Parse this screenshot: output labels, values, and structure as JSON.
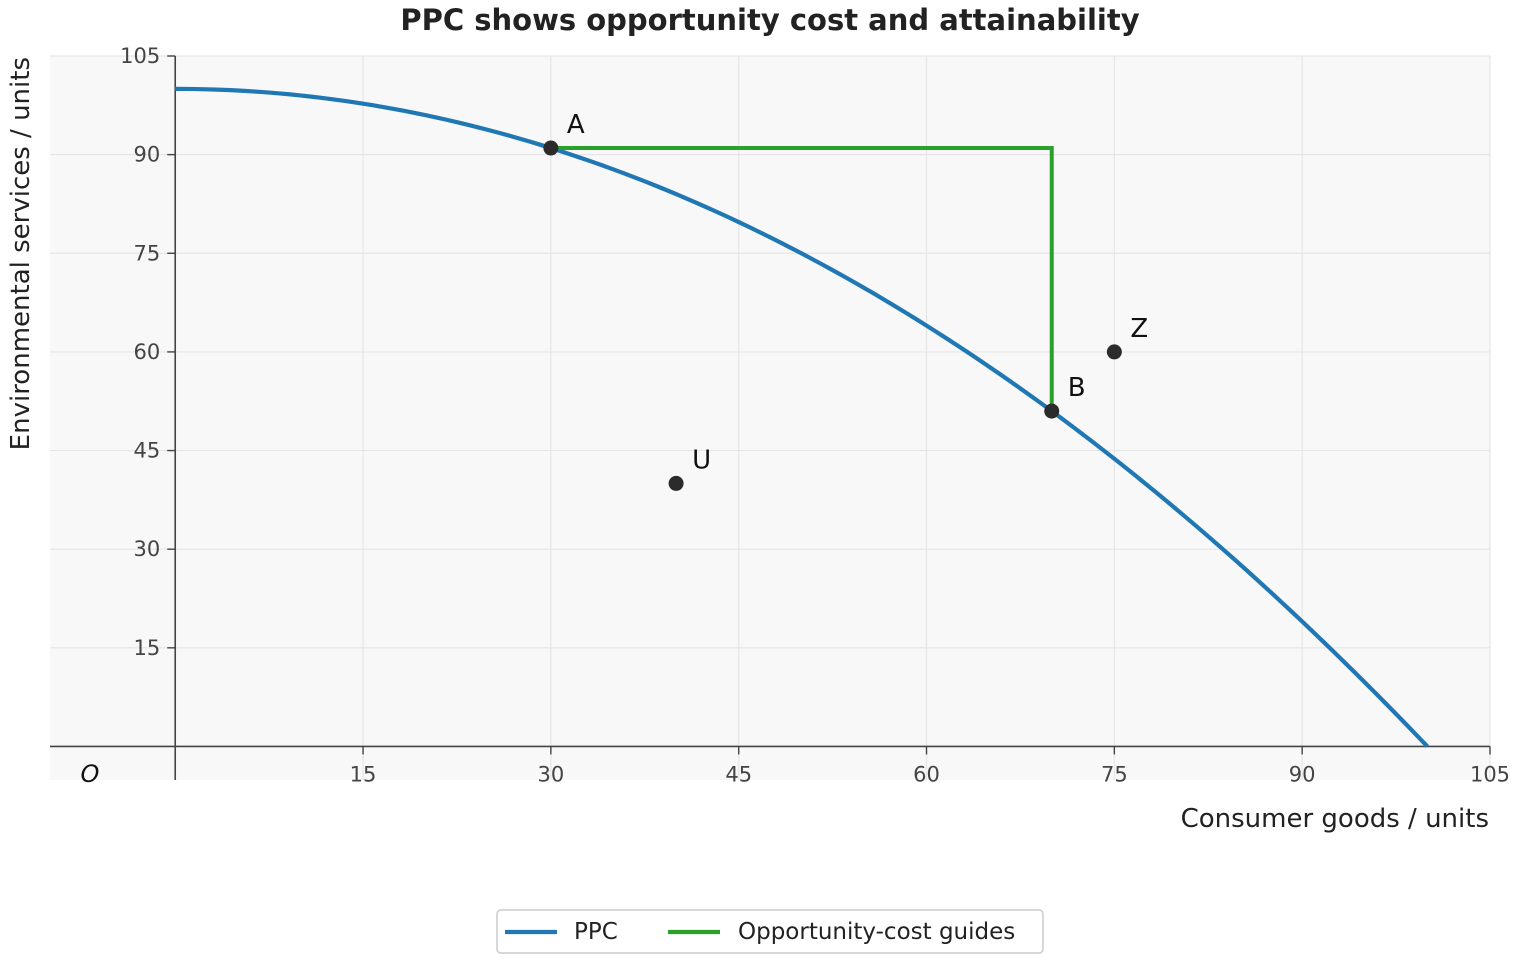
{
  "chart_data": {
    "type": "line",
    "title": "PPC shows opportunity cost and attainability",
    "xlabel": "Consumer goods / units",
    "ylabel": "Environmental services / units",
    "origin_label": "O",
    "xlim": [
      -10,
      105
    ],
    "ylim": [
      0,
      105
    ],
    "xticks": [
      15,
      30,
      45,
      60,
      75,
      90,
      105
    ],
    "yticks": [
      15,
      30,
      45,
      60,
      75,
      90,
      105
    ],
    "grid": true,
    "legend_placement": "bottom-center",
    "series": [
      {
        "name": "PPC",
        "color": "#1f77b4",
        "x": [
          0,
          10,
          20,
          30,
          40,
          50,
          60,
          70,
          80,
          90,
          100
        ],
        "y": [
          100,
          99,
          96,
          91,
          84,
          75,
          64,
          51,
          36,
          19,
          0
        ]
      },
      {
        "name": "Opportunity-cost guides",
        "color": "#2ca02c",
        "x": [
          30,
          70,
          70
        ],
        "y": [
          91,
          91,
          51
        ]
      }
    ],
    "points": [
      {
        "label": "A",
        "x": 30,
        "y": 91
      },
      {
        "label": "B",
        "x": 70,
        "y": 51
      },
      {
        "label": "Z",
        "x": 75,
        "y": 60
      },
      {
        "label": "U",
        "x": 40,
        "y": 40
      }
    ]
  }
}
